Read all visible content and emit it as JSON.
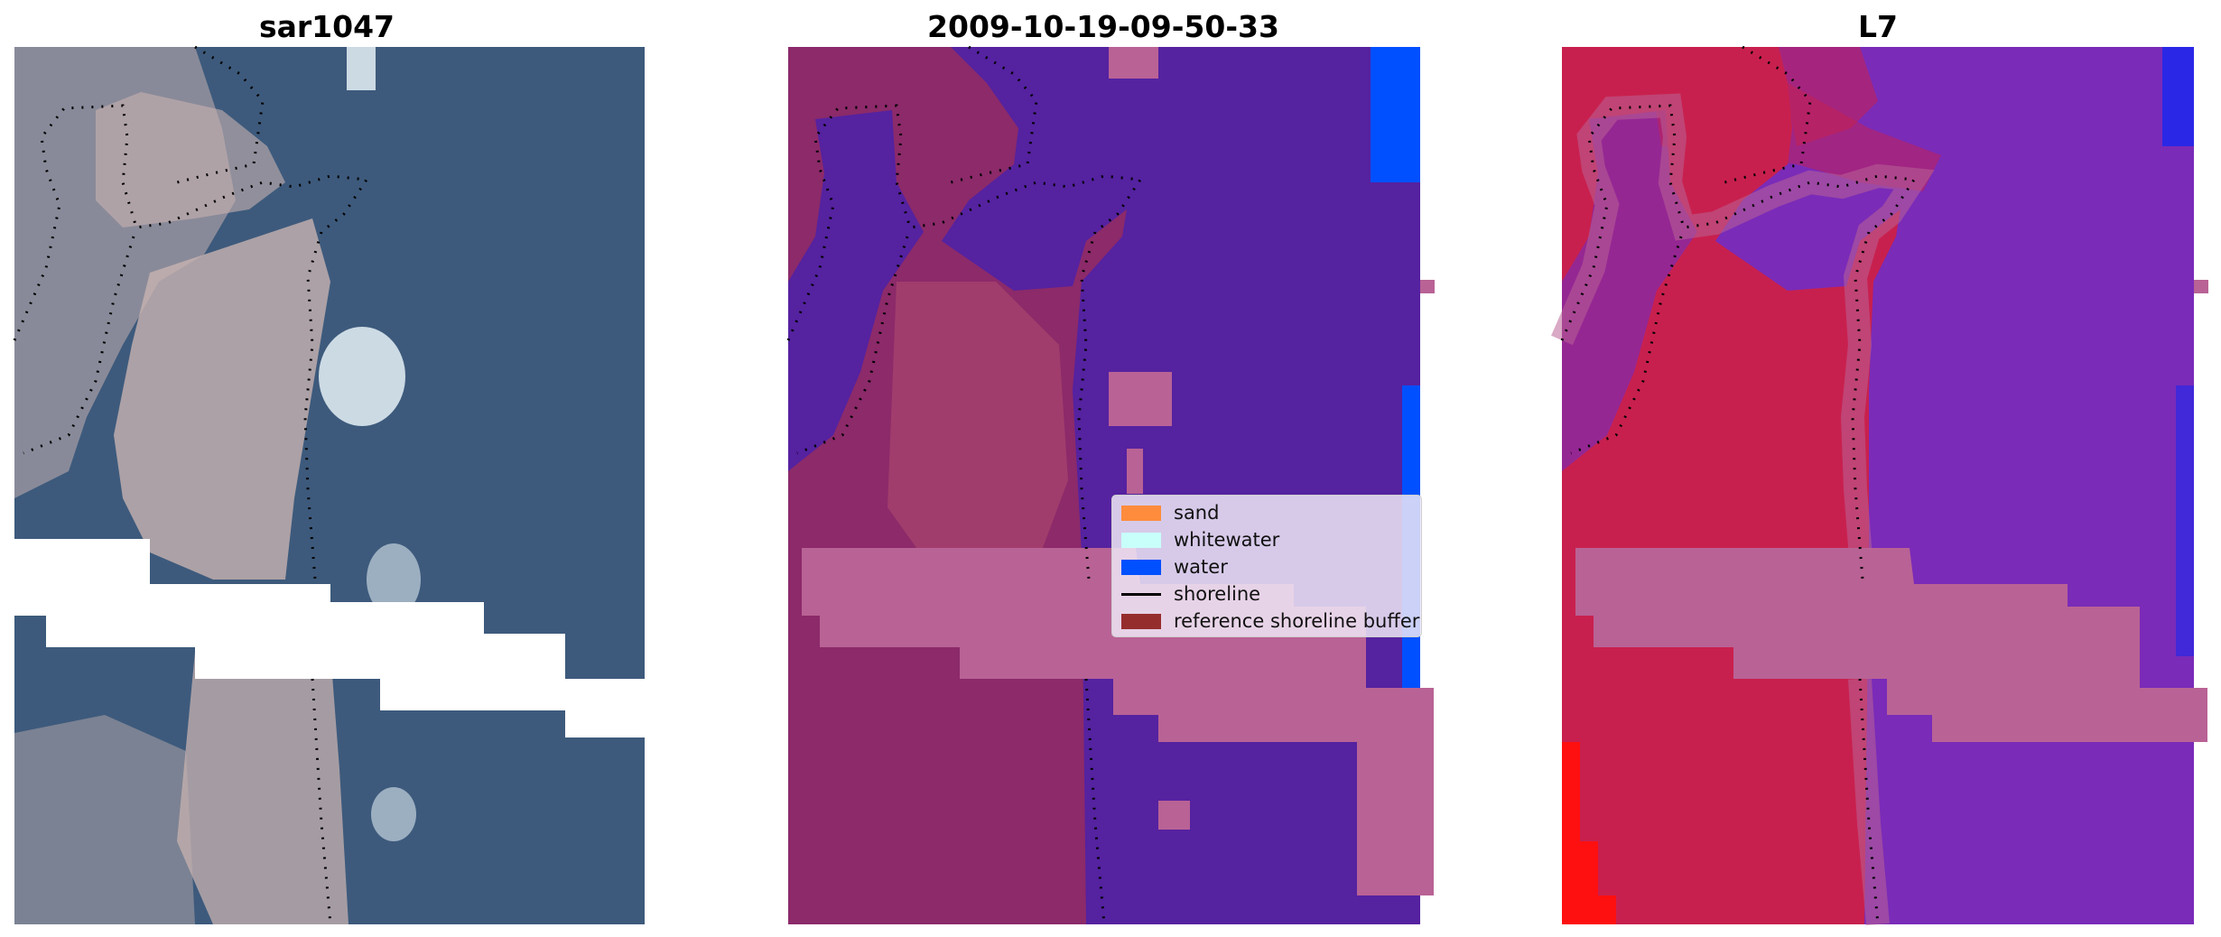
{
  "panels": [
    {
      "title": "sar1047",
      "kind": "rgb"
    },
    {
      "title": "2009-10-19-09-50-33",
      "kind": "classified"
    },
    {
      "title": "L7",
      "kind": "index"
    }
  ],
  "legend": {
    "items": [
      {
        "label": "sand",
        "color": "#ff8c3c",
        "type": "patch"
      },
      {
        "label": "whitewater",
        "color": "#c8fffa",
        "type": "patch"
      },
      {
        "label": "water",
        "color": "#0050ff",
        "type": "patch"
      },
      {
        "label": "shoreline",
        "color": "#000000",
        "type": "line"
      },
      {
        "label": "reference shoreline buffer",
        "color": "#962d2d",
        "type": "patch"
      }
    ]
  },
  "colors": {
    "rgb_water": "#3d5a7c",
    "rgb_sand": "#c8b3b0",
    "rgb_whitewater": "#dce8f0",
    "rgb_nodata": "#ffffff",
    "class_water": "#5522a0",
    "class_land": "#8c2a6a",
    "class_land_light": "#a8446e",
    "class_buffer": "#b96295",
    "class_water_pure": "#0050ff",
    "index_water": "#7a2bb8",
    "index_land": "#c8204e",
    "index_buffer": "#b96295",
    "index_blue": "#2a28e6",
    "index_red": "#ff1010",
    "shoreline": "#000000"
  }
}
